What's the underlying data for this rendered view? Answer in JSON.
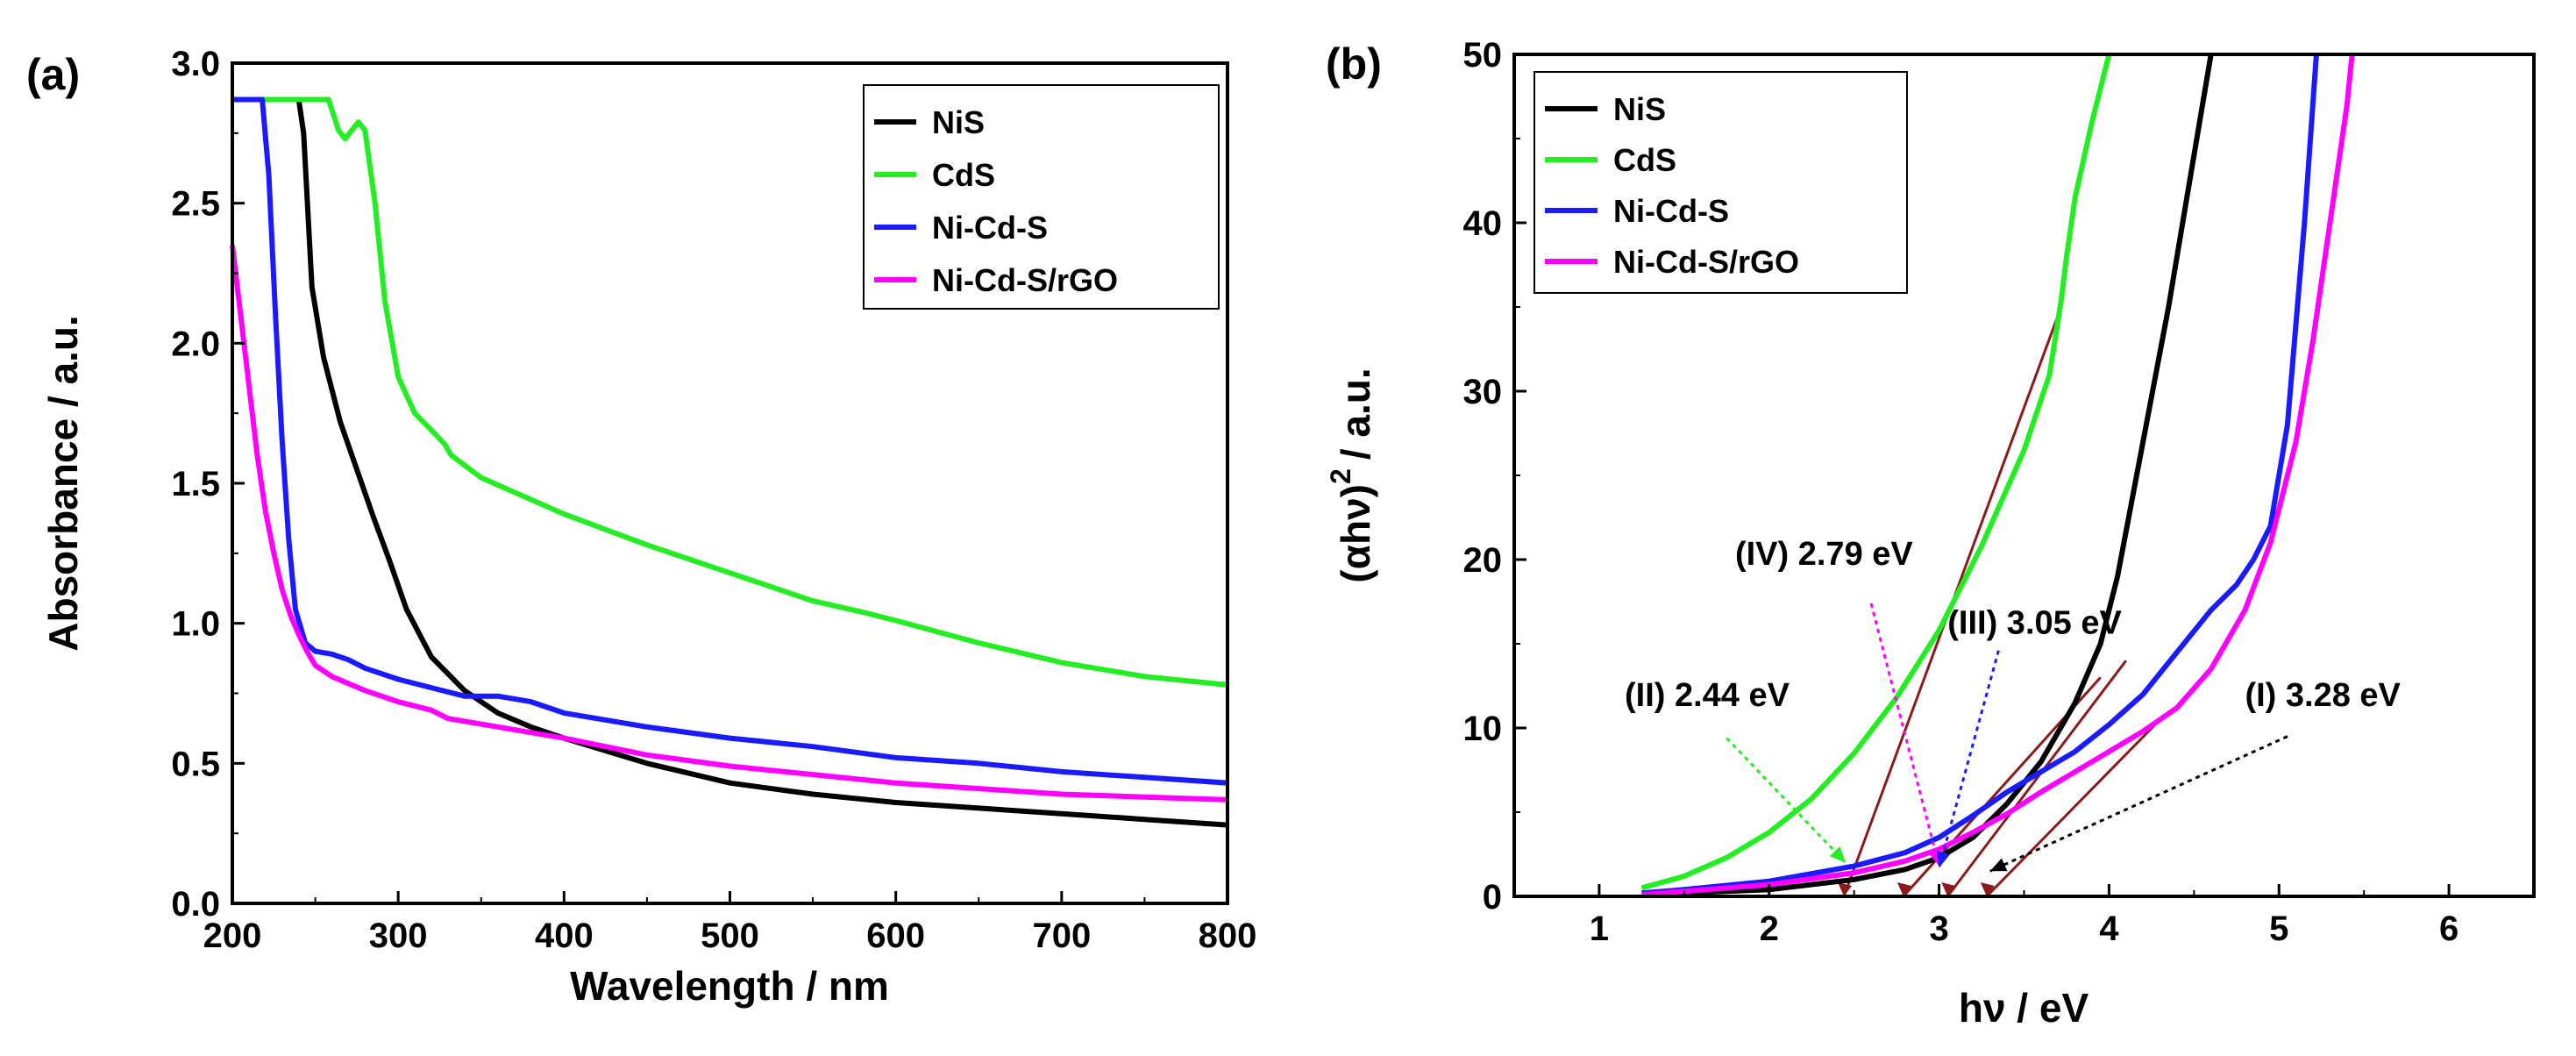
{
  "colors": {
    "NiS": "#000000",
    "CdS": "#22ee22",
    "Ni-Cd-S": "#1a1aff",
    "Ni-Cd-S/rGO": "#ff00ff",
    "tangent": "#8b1a1a"
  },
  "chart_data": [
    {
      "type": "line",
      "panel_label": "(a)",
      "xlabel": "Wavelength / nm",
      "ylabel": "Absorbance / a.u.",
      "xlim": [
        200,
        800
      ],
      "ylim": [
        0,
        3.0
      ],
      "xticks": [
        "200",
        "300",
        "400",
        "500",
        "600",
        "700",
        "800"
      ],
      "yticks": [
        "0.0",
        "0.5",
        "1.0",
        "1.5",
        "2.0",
        "2.5",
        "3.0"
      ],
      "legend_position": "top-right",
      "series": [
        {
          "name": "NiS",
          "x": [
            240,
            243,
            248,
            255,
            265,
            275,
            285,
            295,
            305,
            320,
            340,
            360,
            380,
            400,
            450,
            500,
            550,
            600,
            650,
            700,
            750,
            800
          ],
          "y": [
            2.87,
            2.75,
            2.2,
            1.95,
            1.72,
            1.55,
            1.38,
            1.22,
            1.05,
            0.88,
            0.76,
            0.68,
            0.63,
            0.59,
            0.5,
            0.43,
            0.39,
            0.36,
            0.34,
            0.32,
            0.3,
            0.28
          ]
        },
        {
          "name": "CdS",
          "x": [
            200,
            220,
            240,
            258,
            264,
            268,
            272,
            276,
            280,
            286,
            292,
            300,
            310,
            320,
            328,
            332,
            350,
            400,
            450,
            500,
            550,
            580,
            600,
            650,
            700,
            750,
            800
          ],
          "y": [
            2.87,
            2.87,
            2.87,
            2.87,
            2.76,
            2.73,
            2.76,
            2.79,
            2.76,
            2.5,
            2.15,
            1.88,
            1.75,
            1.69,
            1.64,
            1.6,
            1.52,
            1.39,
            1.28,
            1.18,
            1.08,
            1.04,
            1.01,
            0.93,
            0.86,
            0.81,
            0.78
          ]
        },
        {
          "name": "Ni-Cd-S",
          "x": [
            200,
            210,
            218,
            222,
            226,
            230,
            234,
            238,
            244,
            250,
            260,
            270,
            280,
            300,
            320,
            340,
            360,
            380,
            400,
            450,
            500,
            550,
            600,
            650,
            700,
            750,
            800
          ],
          "y": [
            2.87,
            2.87,
            2.87,
            2.6,
            2.1,
            1.65,
            1.3,
            1.05,
            0.93,
            0.9,
            0.89,
            0.87,
            0.84,
            0.8,
            0.77,
            0.74,
            0.74,
            0.72,
            0.68,
            0.63,
            0.59,
            0.56,
            0.52,
            0.5,
            0.47,
            0.45,
            0.43
          ]
        },
        {
          "name": "Ni-Cd-S/rGO",
          "x": [
            200,
            205,
            210,
            215,
            220,
            225,
            230,
            235,
            240,
            245,
            250,
            260,
            280,
            300,
            320,
            330,
            350,
            400,
            450,
            500,
            550,
            600,
            650,
            700,
            750,
            800
          ],
          "y": [
            2.35,
            2.1,
            1.85,
            1.6,
            1.4,
            1.25,
            1.12,
            1.03,
            0.96,
            0.9,
            0.85,
            0.81,
            0.76,
            0.72,
            0.69,
            0.66,
            0.64,
            0.59,
            0.53,
            0.49,
            0.46,
            0.43,
            0.41,
            0.39,
            0.38,
            0.37
          ]
        }
      ]
    },
    {
      "type": "line",
      "panel_label": "(b)",
      "xlabel": "hν / eV",
      "ylabel_main": "(αhν)",
      "ylabel_sup": "2",
      "ylabel_unit": "/ a.u.",
      "xlim": [
        0.5,
        6.5
      ],
      "ylim": [
        0,
        50
      ],
      "xticks": [
        "1",
        "2",
        "3",
        "4",
        "5",
        "6"
      ],
      "yticks": [
        "0",
        "10",
        "20",
        "30",
        "40",
        "50"
      ],
      "legend_position": "top-left",
      "series": [
        {
          "name": "NiS",
          "x": [
            1.25,
            1.5,
            2.0,
            2.5,
            2.8,
            3.0,
            3.2,
            3.4,
            3.6,
            3.8,
            3.95,
            4.05,
            4.2,
            4.35,
            4.45,
            4.55,
            4.6
          ],
          "y": [
            0.1,
            0.2,
            0.4,
            1.0,
            1.6,
            2.3,
            3.5,
            5.5,
            8.0,
            11.5,
            15.0,
            19.0,
            27.0,
            35.0,
            41.0,
            47.0,
            50.0
          ]
        },
        {
          "name": "CdS",
          "x": [
            1.25,
            1.5,
            1.75,
            2.0,
            2.25,
            2.5,
            2.75,
            3.0,
            3.25,
            3.5,
            3.65,
            3.72,
            3.75,
            3.8,
            3.9,
            4.0
          ],
          "y": [
            0.5,
            1.2,
            2.3,
            3.8,
            5.8,
            8.5,
            11.8,
            15.8,
            20.8,
            26.5,
            31.0,
            35.5,
            38.0,
            41.5,
            46.0,
            50.0
          ]
        },
        {
          "name": "Ni-Cd-S",
          "x": [
            1.25,
            1.5,
            2.0,
            2.5,
            2.8,
            3.0,
            3.2,
            3.4,
            3.6,
            3.8,
            4.0,
            4.2,
            4.4,
            4.6,
            4.75,
            4.85,
            4.95,
            5.05,
            5.15,
            5.22
          ],
          "y": [
            0.2,
            0.4,
            0.9,
            1.8,
            2.6,
            3.5,
            4.8,
            6.2,
            7.4,
            8.6,
            10.2,
            12.0,
            14.5,
            17.0,
            18.5,
            20.0,
            22.0,
            28.0,
            40.0,
            50.0
          ]
        },
        {
          "name": "Ni-Cd-S/rGO",
          "x": [
            1.25,
            1.5,
            2.0,
            2.5,
            2.8,
            3.0,
            3.2,
            3.4,
            3.6,
            3.8,
            4.0,
            4.2,
            4.4,
            4.6,
            4.8,
            4.95,
            5.1,
            5.2,
            5.3,
            5.4,
            5.43
          ],
          "y": [
            0.1,
            0.3,
            0.7,
            1.4,
            2.1,
            2.8,
            3.8,
            4.9,
            6.2,
            7.4,
            8.6,
            9.8,
            11.2,
            13.5,
            17.0,
            21.0,
            27.0,
            33.0,
            40.0,
            47.0,
            50.0
          ]
        }
      ],
      "tangents": [
        {
          "x": [
            2.44,
            3.7
          ],
          "y": [
            0,
            34.5
          ]
        },
        {
          "x": [
            2.79,
            3.95
          ],
          "y": [
            0,
            13.0
          ]
        },
        {
          "x": [
            3.05,
            4.1
          ],
          "y": [
            0,
            14.0
          ]
        },
        {
          "x": [
            3.28,
            4.3
          ],
          "y": [
            0,
            10.5
          ]
        }
      ],
      "annotations": [
        {
          "label": "(IV) 2.79 eV",
          "text_x": 1.8,
          "text_y": 19.7,
          "from": [
            2.6,
            17.4
          ],
          "to": [
            3.0,
            1.8
          ],
          "color": "#ff00ff"
        },
        {
          "label": "(III) 3.05 eV",
          "text_x": 3.05,
          "text_y": 15.6,
          "from": [
            3.35,
            14.6
          ],
          "to": [
            3.0,
            1.7
          ],
          "color": "#1a1aff"
        },
        {
          "label": "(II) 2.44 eV",
          "text_x": 1.15,
          "text_y": 11.3,
          "from": [
            1.75,
            9.4
          ],
          "to": [
            2.45,
            2.0
          ],
          "color": "#22ee22"
        },
        {
          "label": "(I) 3.28 eV",
          "text_x": 4.8,
          "text_y": 11.3,
          "from": [
            5.05,
            9.5
          ],
          "to": [
            3.3,
            1.5
          ],
          "color": "#000000"
        }
      ]
    }
  ]
}
